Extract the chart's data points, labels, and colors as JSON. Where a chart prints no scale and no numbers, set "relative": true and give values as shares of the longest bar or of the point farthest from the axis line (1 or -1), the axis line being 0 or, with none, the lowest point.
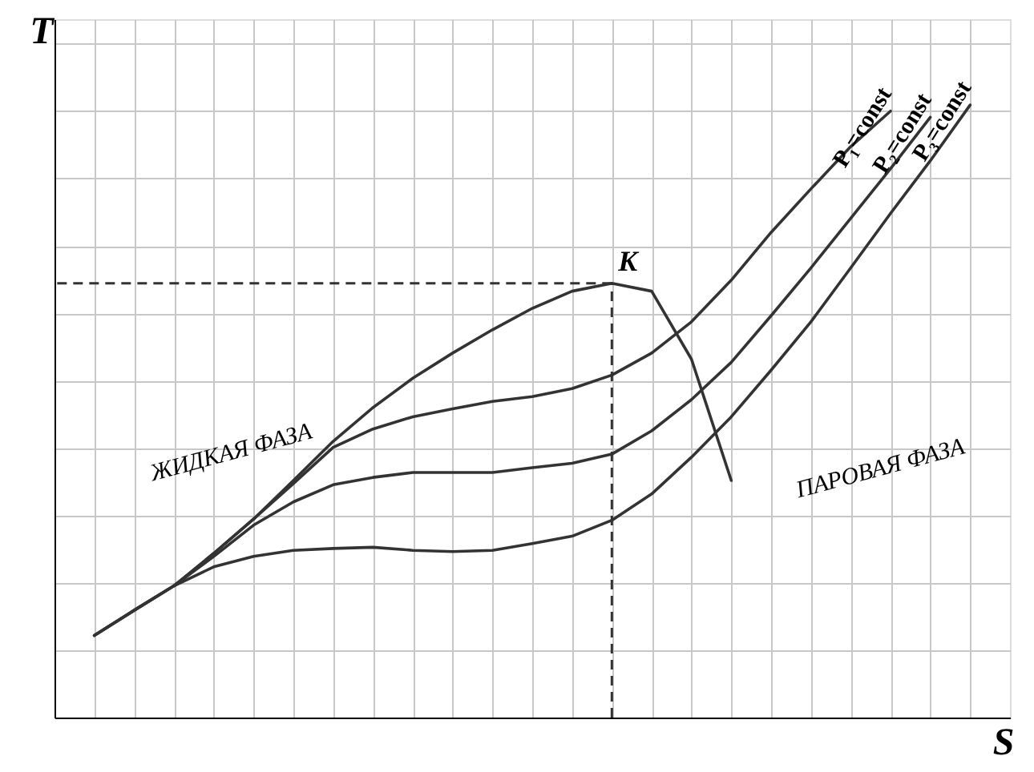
{
  "chart_data": {
    "type": "line",
    "relative": true,
    "xlabel": "S",
    "ylabel": "T",
    "grid": true,
    "marker": "none",
    "line_style": "solid",
    "categories": [
      null,
      null,
      null,
      null,
      null,
      null,
      null,
      null,
      null,
      null,
      null,
      null,
      null,
      null,
      null,
      null,
      null,
      null,
      null,
      null,
      null,
      null,
      null
    ],
    "series": [
      {
        "color": "#333333",
        "values": [
          null,
          null,
          0.215,
          0.268,
          0.324,
          0.387,
          0.451,
          0.506,
          0.554,
          0.595,
          0.633,
          0.668,
          0.696,
          0.709,
          0.696,
          0.585,
          0.387,
          null,
          null,
          null,
          null,
          null,
          null
        ]
      },
      {
        "name": "P₁=const",
        "color": "#333333",
        "values": [
          0.134,
          0.175,
          0.215,
          0.268,
          0.324,
          0.382,
          0.441,
          0.471,
          0.491,
          0.504,
          0.516,
          0.524,
          0.537,
          0.559,
          0.595,
          0.646,
          0.714,
          0.792,
          0.863,
          0.932,
          0.99,
          null,
          null
        ]
      },
      {
        "name": "P₂=const",
        "color": "#333333",
        "values": [
          0.134,
          0.175,
          0.215,
          0.263,
          0.314,
          0.352,
          0.38,
          0.392,
          0.4,
          0.4,
          0.4,
          0.408,
          0.415,
          0.43,
          0.468,
          0.519,
          0.58,
          0.656,
          0.734,
          0.815,
          0.896,
          0.98,
          null
        ]
      },
      {
        "name": "P₃=const",
        "color": "#333333",
        "values": [
          0.134,
          0.175,
          0.215,
          0.246,
          0.263,
          0.273,
          0.276,
          0.278,
          0.273,
          0.271,
          0.273,
          0.284,
          0.296,
          0.322,
          0.365,
          0.425,
          0.491,
          0.567,
          0.646,
          0.734,
          0.823,
          0.909,
          1.0
        ]
      }
    ],
    "ref_lines": [
      {
        "axis": "y",
        "value": 0.709,
        "color": "#333333",
        "line_style": "dashed"
      },
      {
        "axis": "x",
        "value": null,
        "color": "#333333",
        "line_style": "dashed"
      }
    ],
    "annotations": [
      {
        "text": "K",
        "y": 0.709
      },
      "ЖИДКАЯ ФАЗА",
      "ПАРОВАЯ ФАЗА"
    ]
  }
}
